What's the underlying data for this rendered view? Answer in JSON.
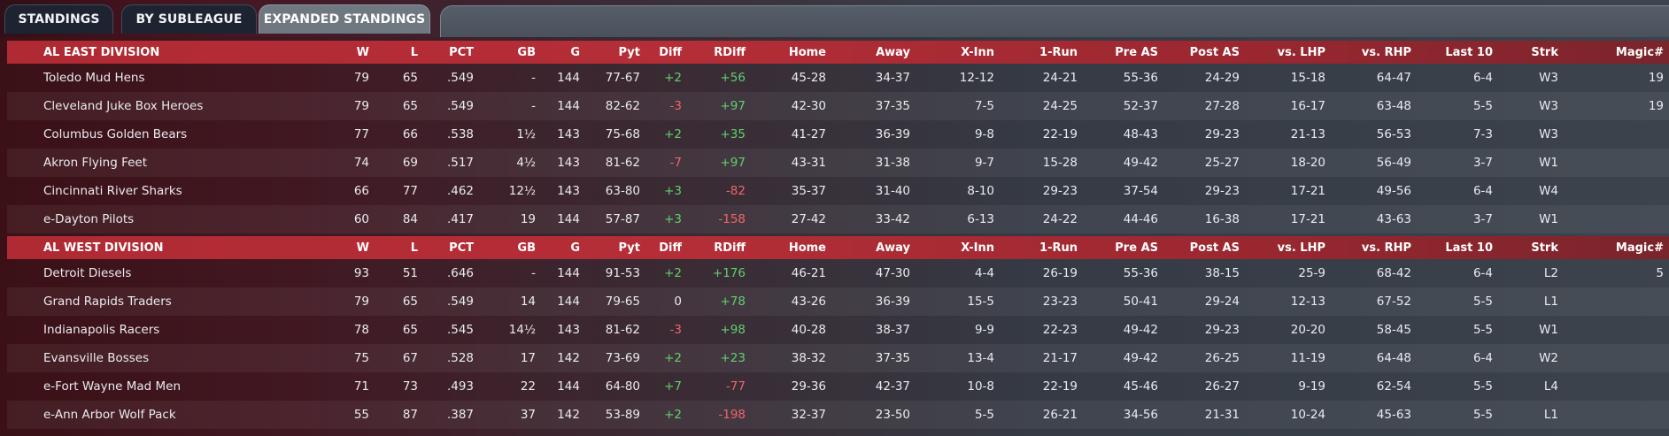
{
  "tabs": [
    {
      "label": "STANDINGS"
    },
    {
      "label": "BY SUBLEAGUE"
    },
    {
      "label": "EXPANDED STANDINGS"
    }
  ],
  "columns": [
    "W",
    "L",
    "PCT",
    "GB",
    "G",
    "Pyt",
    "Diff",
    "RDiff",
    "Home",
    "Away",
    "X-Inn",
    "1-Run",
    "Pre AS",
    "Post AS",
    "vs. LHP",
    "vs. RHP",
    "Last 10",
    "Strk",
    "Magic#"
  ],
  "divisions": [
    {
      "name": "AL EAST DIVISION",
      "teams": [
        {
          "team": "Toledo  Mud Hens",
          "W": "79",
          "L": "65",
          "PCT": ".549",
          "GB": "-",
          "G": "144",
          "Pyt": "77-67",
          "Diff": "+2",
          "RDiff": "+56",
          "Home": "45-28",
          "Away": "34-37",
          "XInn": "12-12",
          "OneRun": "24-21",
          "PreAS": "55-36",
          "PostAS": "24-29",
          "vsLHP": "15-18",
          "vsRHP": "64-47",
          "Last10": "6-4",
          "Strk": "W3",
          "Magic": "19"
        },
        {
          "team": "Cleveland Juke Box Heroes",
          "W": "79",
          "L": "65",
          "PCT": ".549",
          "GB": "-",
          "G": "144",
          "Pyt": "82-62",
          "Diff": "-3",
          "RDiff": "+97",
          "Home": "42-30",
          "Away": "37-35",
          "XInn": "7-5",
          "OneRun": "24-25",
          "PreAS": "52-37",
          "PostAS": "27-28",
          "vsLHP": "16-17",
          "vsRHP": "63-48",
          "Last10": "5-5",
          "Strk": "W3",
          "Magic": "19"
        },
        {
          "team": "Columbus Golden Bears",
          "W": "77",
          "L": "66",
          "PCT": ".538",
          "GB": "1½",
          "G": "143",
          "Pyt": "75-68",
          "Diff": "+2",
          "RDiff": "+35",
          "Home": "41-27",
          "Away": "36-39",
          "XInn": "9-8",
          "OneRun": "22-19",
          "PreAS": "48-43",
          "PostAS": "29-23",
          "vsLHP": "21-13",
          "vsRHP": "56-53",
          "Last10": "7-3",
          "Strk": "W3",
          "Magic": ""
        },
        {
          "team": "Akron  Flying Feet",
          "W": "74",
          "L": "69",
          "PCT": ".517",
          "GB": "4½",
          "G": "143",
          "Pyt": "81-62",
          "Diff": "-7",
          "RDiff": "+97",
          "Home": "43-31",
          "Away": "31-38",
          "XInn": "9-7",
          "OneRun": "15-28",
          "PreAS": "49-42",
          "PostAS": "25-27",
          "vsLHP": "18-20",
          "vsRHP": "56-49",
          "Last10": "3-7",
          "Strk": "W1",
          "Magic": ""
        },
        {
          "team": "Cincinnati River Sharks",
          "W": "66",
          "L": "77",
          "PCT": ".462",
          "GB": "12½",
          "G": "143",
          "Pyt": "63-80",
          "Diff": "+3",
          "RDiff": "-82",
          "Home": "35-37",
          "Away": "31-40",
          "XInn": "8-10",
          "OneRun": "29-23",
          "PreAS": "37-54",
          "PostAS": "29-23",
          "vsLHP": "17-21",
          "vsRHP": "49-56",
          "Last10": "6-4",
          "Strk": "W4",
          "Magic": ""
        },
        {
          "team": "e-Dayton Pilots",
          "W": "60",
          "L": "84",
          "PCT": ".417",
          "GB": "19",
          "G": "144",
          "Pyt": "57-87",
          "Diff": "+3",
          "RDiff": "-158",
          "Home": "27-42",
          "Away": "33-42",
          "XInn": "6-13",
          "OneRun": "24-22",
          "PreAS": "44-46",
          "PostAS": "16-38",
          "vsLHP": "17-21",
          "vsRHP": "43-63",
          "Last10": "3-7",
          "Strk": "W1",
          "Magic": ""
        }
      ]
    },
    {
      "name": "AL WEST DIVISION",
      "teams": [
        {
          "team": "Detroit Diesels",
          "W": "93",
          "L": "51",
          "PCT": ".646",
          "GB": "-",
          "G": "144",
          "Pyt": "91-53",
          "Diff": "+2",
          "RDiff": "+176",
          "Home": "46-21",
          "Away": "47-30",
          "XInn": "4-4",
          "OneRun": "26-19",
          "PreAS": "55-36",
          "PostAS": "38-15",
          "vsLHP": "25-9",
          "vsRHP": "68-42",
          "Last10": "6-4",
          "Strk": "L2",
          "Magic": "5"
        },
        {
          "team": "Grand Rapids Traders",
          "W": "79",
          "L": "65",
          "PCT": ".549",
          "GB": "14",
          "G": "144",
          "Pyt": "79-65",
          "Diff": "0",
          "RDiff": "+78",
          "Home": "43-26",
          "Away": "36-39",
          "XInn": "15-5",
          "OneRun": "23-23",
          "PreAS": "50-41",
          "PostAS": "29-24",
          "vsLHP": "12-13",
          "vsRHP": "67-52",
          "Last10": "5-5",
          "Strk": "L1",
          "Magic": ""
        },
        {
          "team": "Indianapolis Racers",
          "W": "78",
          "L": "65",
          "PCT": ".545",
          "GB": "14½",
          "G": "143",
          "Pyt": "81-62",
          "Diff": "-3",
          "RDiff": "+98",
          "Home": "40-28",
          "Away": "38-37",
          "XInn": "9-9",
          "OneRun": "22-23",
          "PreAS": "49-42",
          "PostAS": "29-23",
          "vsLHP": "20-20",
          "vsRHP": "58-45",
          "Last10": "5-5",
          "Strk": "W1",
          "Magic": ""
        },
        {
          "team": "Evansville Bosses",
          "W": "75",
          "L": "67",
          "PCT": ".528",
          "GB": "17",
          "G": "142",
          "Pyt": "73-69",
          "Diff": "+2",
          "RDiff": "+23",
          "Home": "38-32",
          "Away": "37-35",
          "XInn": "13-4",
          "OneRun": "21-17",
          "PreAS": "49-42",
          "PostAS": "26-25",
          "vsLHP": "11-19",
          "vsRHP": "64-48",
          "Last10": "6-4",
          "Strk": "W2",
          "Magic": ""
        },
        {
          "team": "e-Fort Wayne Mad Men",
          "W": "71",
          "L": "73",
          "PCT": ".493",
          "GB": "22",
          "G": "144",
          "Pyt": "64-80",
          "Diff": "+7",
          "RDiff": "-77",
          "Home": "29-36",
          "Away": "42-37",
          "XInn": "10-8",
          "OneRun": "22-19",
          "PreAS": "45-46",
          "PostAS": "26-27",
          "vsLHP": "9-19",
          "vsRHP": "62-54",
          "Last10": "5-5",
          "Strk": "L4",
          "Magic": ""
        },
        {
          "team": "e-Ann Arbor Wolf Pack",
          "W": "55",
          "L": "87",
          "PCT": ".387",
          "GB": "37",
          "G": "142",
          "Pyt": "53-89",
          "Diff": "+2",
          "RDiff": "-198",
          "Home": "32-37",
          "Away": "23-50",
          "XInn": "5-5",
          "OneRun": "26-21",
          "PreAS": "34-56",
          "PostAS": "21-31",
          "vsLHP": "10-24",
          "vsRHP": "45-63",
          "Last10": "5-5",
          "Strk": "L1",
          "Magic": ""
        }
      ]
    }
  ]
}
